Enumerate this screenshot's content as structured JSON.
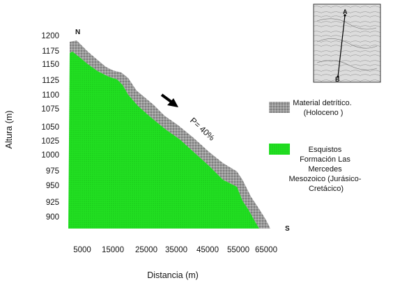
{
  "colors": {
    "bedrock": "#22e022",
    "detritus": "#9a9a9a",
    "arrow": "#000000"
  },
  "axis": {
    "ylabel": "Altura (m)",
    "xlabel": "Distancia (m)",
    "yticks": [
      "1200",
      "1175",
      "1150",
      "1125",
      "1100",
      "1075",
      "1050",
      "1025",
      "1000",
      "975",
      "950",
      "925",
      "900"
    ],
    "xticks": [
      "5000",
      "15000",
      "25000",
      "35000",
      "45000",
      "55000",
      "65000"
    ]
  },
  "compass": {
    "start": "N",
    "end": "S"
  },
  "slope_label": "P= 40%",
  "legend": [
    {
      "swatch": "detritus",
      "lines": [
        "Material detrítico.",
        "(Holoceno )"
      ]
    },
    {
      "swatch": "bedrock",
      "lines": [
        "Esquistos",
        "Formación Las",
        "Mercedes",
        "Mesozoico (Jurásico-",
        "Cretácico)"
      ]
    }
  ],
  "inset_map": {
    "point_a": "A",
    "point_b": "B"
  }
}
